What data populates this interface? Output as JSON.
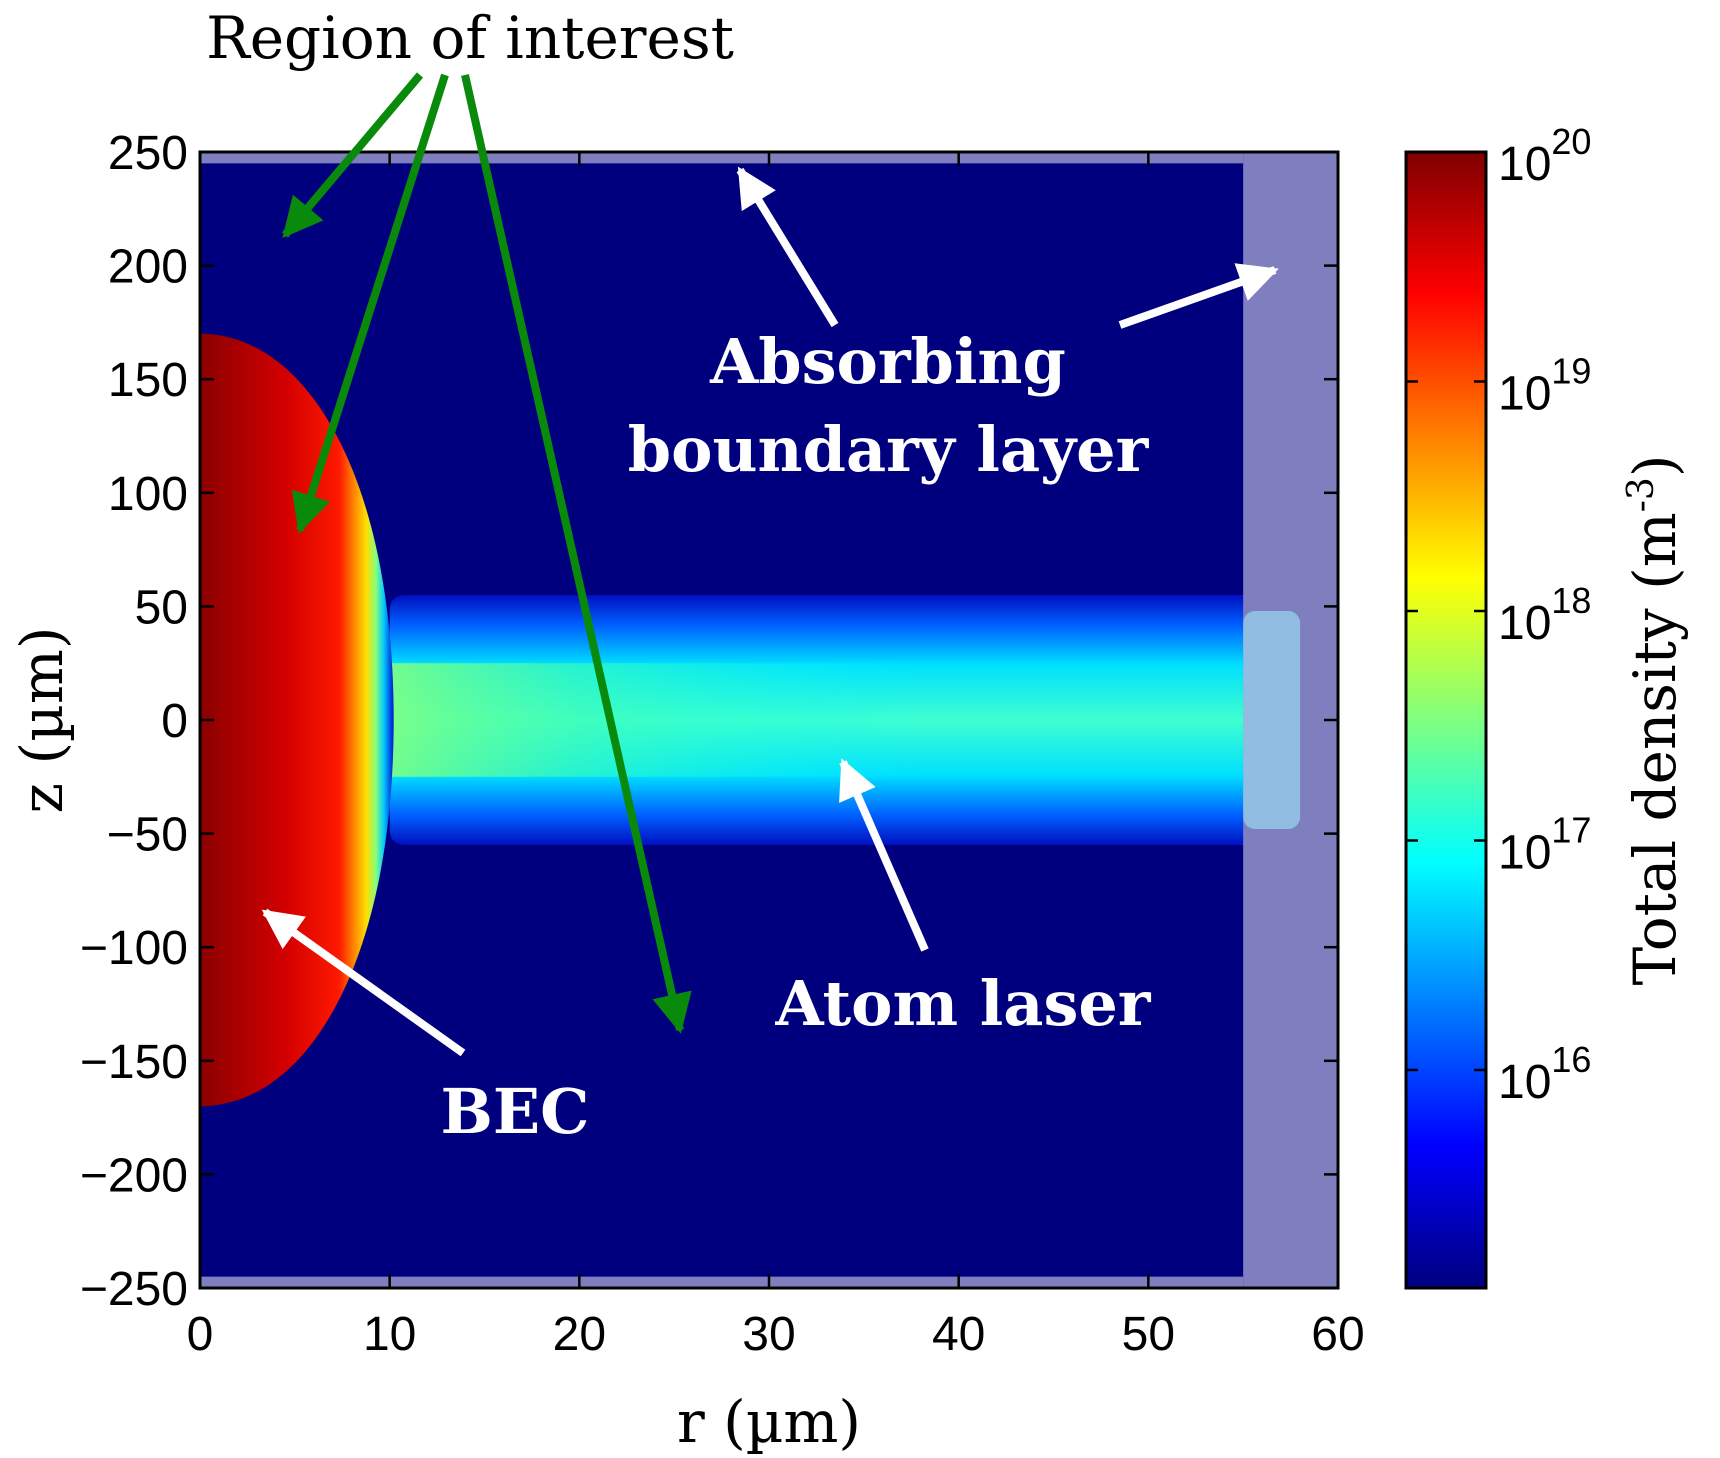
{
  "chart_data": {
    "type": "heatmap",
    "xlabel": "r (µm)",
    "ylabel": "z (µm)",
    "xlim": [
      0,
      60
    ],
    "ylim": [
      -250,
      250
    ],
    "x_ticks": [
      "0",
      "10",
      "20",
      "30",
      "40",
      "50",
      "60"
    ],
    "y_ticks": [
      "250",
      "200",
      "150",
      "100",
      "50",
      "0",
      "−50",
      "−100",
      "−150",
      "−200",
      "−250"
    ],
    "colorbar": {
      "label": "Total density (m",
      "label_exp": "-3",
      "label_close": ")",
      "scale": "log",
      "range": [
        "1e15.2",
        "1e20"
      ],
      "tick_base": "10",
      "tick_exponents": [
        "20",
        "19",
        "18",
        "17",
        "16"
      ],
      "colormap": "jet"
    },
    "features": {
      "bec": {
        "r_max": 10,
        "z_half": 170,
        "log_density_center": 19.9
      },
      "atom_laser": {
        "r_start": 10,
        "r_end": 55,
        "z_half": 50,
        "log_density_center": 17.2
      },
      "absorbing_layer": {
        "r_from": 55,
        "z_abs": 245
      }
    },
    "annotations": {
      "region_of_interest": "Region of interest",
      "absorbing_line1": "Absorbing",
      "absorbing_line2": "boundary layer",
      "atom_laser": "Atom laser",
      "bec": "BEC"
    }
  },
  "colors": {
    "background_plot": "#00007f",
    "absorbing": "#7f7fbf",
    "annotation_arrow_green": "#0a8a0a",
    "annotation_arrow_white": "#ffffff"
  }
}
